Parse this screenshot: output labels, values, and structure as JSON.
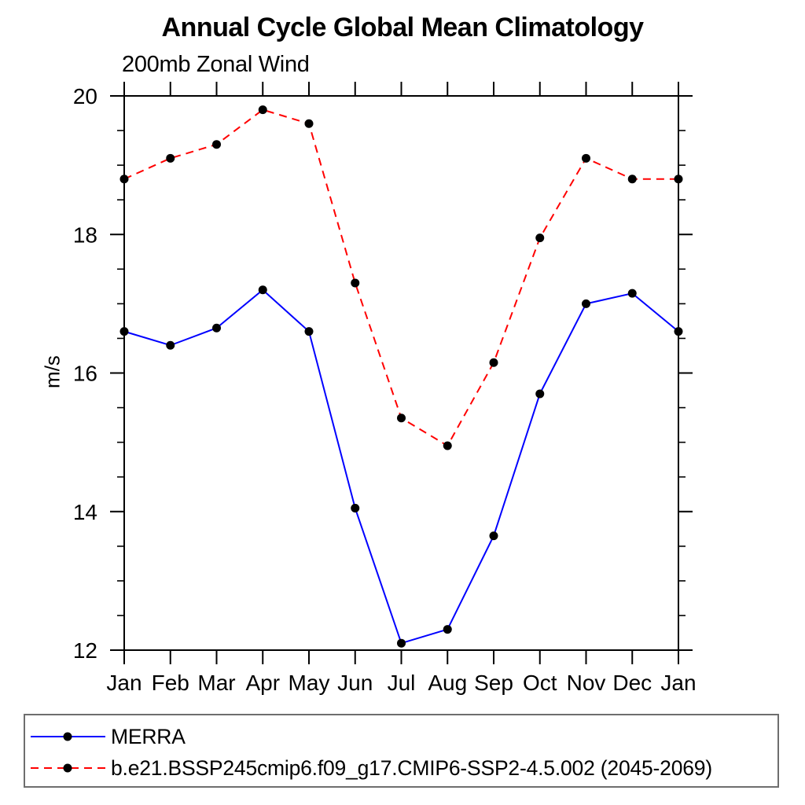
{
  "title": "Annual Cycle Global Mean Climatology",
  "subtitle": "200mb Zonal Wind",
  "ylabel": "m/s",
  "colors": {
    "merra_line": "#0000ff",
    "model_line": "#ff0000",
    "marker": "#000000",
    "axis": "#000000",
    "legend_border": "#6e6e6e"
  },
  "legend": {
    "items": [
      {
        "label": "MERRA",
        "color": "#0000ff",
        "style": "solid",
        "marker": "circle"
      },
      {
        "label": "b.e21.BSSP245cmip6.f09_g17.CMIP6-SSP2-4.5.002 (2045-2069)",
        "color": "#ff0000",
        "style": "dashed",
        "marker": "circle"
      }
    ]
  },
  "chart_data": {
    "type": "line",
    "title": "Annual Cycle Global Mean Climatology",
    "subtitle": "200mb Zonal Wind",
    "xlabel": "",
    "ylabel": "m/s",
    "x_categories": [
      "Jan",
      "Feb",
      "Mar",
      "Apr",
      "May",
      "Jun",
      "Jul",
      "Aug",
      "Sep",
      "Oct",
      "Nov",
      "Dec",
      "Jan"
    ],
    "series": [
      {
        "name": "MERRA",
        "color": "#0000ff",
        "dash": "solid",
        "marker": "circle",
        "marker_color": "#000000",
        "values": [
          16.6,
          16.4,
          16.65,
          17.2,
          16.6,
          14.05,
          12.1,
          12.3,
          13.65,
          15.7,
          17.0,
          17.15,
          16.6
        ]
      },
      {
        "name": "b.e21.BSSP245cmip6.f09_g17.CMIP6-SSP2-4.5.002 (2045-2069)",
        "color": "#ff0000",
        "dash": "dashed",
        "marker": "circle",
        "marker_color": "#000000",
        "values": [
          18.8,
          19.1,
          19.3,
          19.8,
          19.6,
          17.3,
          15.35,
          14.95,
          16.15,
          17.95,
          19.1,
          18.8,
          18.8
        ]
      }
    ],
    "ylim": [
      12,
      20
    ],
    "y_major_ticks": [
      12,
      14,
      16,
      18,
      20
    ],
    "y_minor_step": 0.5,
    "grid": "off",
    "legend_position": "bottom-left-box",
    "ticks": "outward-all-sides"
  }
}
